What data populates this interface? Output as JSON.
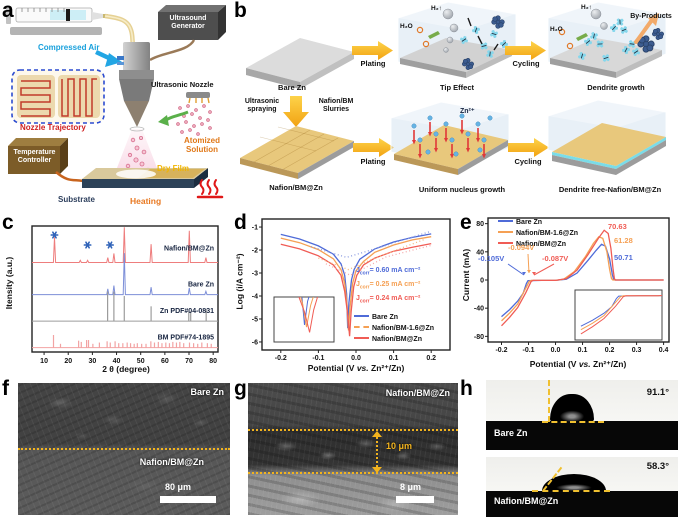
{
  "figure": {
    "background": "#ffffff"
  },
  "panels": {
    "a": {
      "letter": "a",
      "labels": {
        "ultrasound_generator": "Ultrasound Generator",
        "compressed_air": "Compressed Air",
        "ultrasonic_nozzle": "Ultrasonic Nozzle",
        "nozzle_trajectory": "Nozzle Trajectory",
        "atomized_solution": "Atomized Solution",
        "temperature_controller": "Temperature Controller",
        "dry_film": "Dry Film",
        "substrate": "Substrate",
        "heating": "Heating"
      }
    },
    "b": {
      "letter": "b",
      "top": {
        "bare_zn": "Bare Zn",
        "plating": "Plating",
        "tip_effect": "Tip Effect",
        "cycling": "Cycling",
        "dendrite_growth": "Dendrite growth",
        "by_products": "By-Products",
        "h2o_1": "H₂O",
        "h2_1": "H₂↑",
        "h2o_2": "H₂O",
        "h2_2": "H₂↑"
      },
      "bottom": {
        "ultrasonic_spraying": "Ultrasonic spraying",
        "slurries": "Nafion/BM Slurries",
        "nafion_bm_zn": "Nafion/BM@Zn",
        "plating": "Plating",
        "zn_ion": "Zn²⁺",
        "uniform_nucleus": "Uniform nucleus growth",
        "cycling": "Cycling",
        "dendrite_free": "Dendrite free-Nafion/BM@Zn"
      }
    },
    "c": {
      "letter": "c"
    },
    "d": {
      "letter": "d"
    },
    "e": {
      "letter": "e"
    },
    "f": {
      "letter": "f",
      "label_top": "Bare Zn",
      "label_bottom": "Nafion/BM@Zn",
      "scalebar": "80 μm"
    },
    "g": {
      "letter": "g",
      "label": "Nafion/BM@Zn",
      "thickness": "10 μm",
      "scalebar": "8 μm"
    },
    "h": {
      "letter": "h",
      "top": {
        "angle": "91.1°",
        "label": "Bare Zn"
      },
      "bottom": {
        "angle": "58.3°",
        "label": "Nafion/BM@Zn"
      }
    }
  },
  "chart_data": [
    {
      "id": "xrd",
      "type": "line",
      "title": "",
      "xlabel": "2 θ (degree)",
      "ylabel": "Itensity (a.u.)",
      "xlim": [
        5,
        82
      ],
      "xticks": [
        10,
        20,
        30,
        40,
        50,
        60,
        70,
        80
      ],
      "grid": false,
      "marker_color": "#2f62b8",
      "star_markers": [
        14.3,
        28,
        37.3
      ],
      "series": [
        {
          "name": "Nafion/BM@Zn",
          "color": "#ee7d7d",
          "base": 0.29,
          "amp": 0.28,
          "peaks": [
            [
              14.3,
              0.72
            ],
            [
              25,
              0.06
            ],
            [
              28,
              0.06
            ],
            [
              36.4,
              0.14
            ],
            [
              38.9,
              0.26
            ],
            [
              43.2,
              1.0
            ],
            [
              54.3,
              0.52
            ],
            [
              70.1,
              0.9
            ],
            [
              77,
              0.14
            ]
          ]
        },
        {
          "name": "Bare Zn",
          "color": "#7d8fd8",
          "base": 0.545,
          "amp": 0.33,
          "peaks": [
            [
              36.4,
              0.14
            ],
            [
              38.9,
              0.22
            ],
            [
              43.2,
              1.0
            ],
            [
              54.3,
              0.18
            ],
            [
              70.1,
              0.16
            ],
            [
              77,
              0.08
            ]
          ]
        },
        {
          "name": "Zn PDF#04-0831",
          "color": "#9c9c9c",
          "base": 0.755,
          "amp": 0.235,
          "bars": [
            [
              36.3,
              1.0
            ],
            [
              38.9,
              1.0
            ],
            [
              43.2,
              0.85
            ],
            [
              54.3,
              0.5
            ],
            [
              69.9,
              0.33
            ],
            [
              70.7,
              0.33
            ],
            [
              77.1,
              0.4
            ]
          ]
        },
        {
          "name": "BM PDF#74-1895",
          "color": "#f2a3a3",
          "base": 0.965,
          "amp": 0.1,
          "bars": [
            [
              13.9,
              1.0
            ],
            [
              16.8,
              0.3
            ],
            [
              24.3,
              0.55
            ],
            [
              25.4,
              0.45
            ],
            [
              27.6,
              0.6
            ],
            [
              28.4,
              0.6
            ],
            [
              30.2,
              0.3
            ],
            [
              32.9,
              0.4
            ],
            [
              36.1,
              0.5
            ],
            [
              37.4,
              0.4
            ],
            [
              39.4,
              0.5
            ],
            [
              40.9,
              0.35
            ],
            [
              42.6,
              0.35
            ],
            [
              44.4,
              0.4
            ],
            [
              45.8,
              0.35
            ],
            [
              47.3,
              0.3
            ],
            [
              48.6,
              0.35
            ],
            [
              50.4,
              0.3
            ],
            [
              52.2,
              0.3
            ],
            [
              54.2,
              0.5
            ],
            [
              55.7,
              0.4
            ],
            [
              57.3,
              0.45
            ],
            [
              58.8,
              0.35
            ],
            [
              60.4,
              0.4
            ],
            [
              61.9,
              0.35
            ],
            [
              63.3,
              0.45
            ],
            [
              64.8,
              0.4
            ],
            [
              66.2,
              0.45
            ],
            [
              67.8,
              0.35
            ],
            [
              70.2,
              0.4
            ],
            [
              71.9,
              0.35
            ],
            [
              73.6,
              0.3
            ],
            [
              75.3,
              0.4
            ],
            [
              77.6,
              0.35
            ],
            [
              79.2,
              0.3
            ]
          ]
        }
      ]
    },
    {
      "id": "tafel",
      "type": "line",
      "title": "",
      "xlabel_pre": "Potential (V ",
      "xlabel_vs": "vs.",
      "xlabel_post": " Zn²⁺/Zn)",
      "ylabel": "Log (i/A cm⁻²)",
      "xlim": [
        -0.25,
        0.25
      ],
      "ylim": [
        -6.35,
        -0.65
      ],
      "xticks": [
        "-0.2",
        "-0.1",
        "0.0",
        "0.1",
        "0.2"
      ],
      "yticks": [
        -1,
        -2,
        -3,
        -4,
        -5,
        -6
      ],
      "legend_position": "lower right",
      "annotations": [
        {
          "j": "J",
          "sub": "corr",
          "rest": "= 0.60 mA cm⁻²",
          "color": "#4f6bd8"
        },
        {
          "j": "J",
          "sub": "corr",
          "rest": "= 0.25 mA cm⁻²",
          "color": "#f5a054"
        },
        {
          "j": "J",
          "sub": "corr",
          "rest": "= 0.24 mA cm⁻²",
          "color": "#f05c55"
        }
      ],
      "legend": [
        {
          "label": "Bare Zn",
          "color": "#4f6bd8",
          "dash": ""
        },
        {
          "label": "Nafion/BM-1.6@Zn",
          "color": "#f5a054",
          "dash": "3 2"
        },
        {
          "label": "Nafion/BM@Zn",
          "color": "#f05c55",
          "dash": ""
        }
      ],
      "series": [
        {
          "name": "Bare Zn",
          "color": "#4f6bd8",
          "dash": "",
          "points": [
            [
              -0.2,
              -1.32
            ],
            [
              -0.15,
              -1.52
            ],
            [
              -0.1,
              -1.82
            ],
            [
              -0.06,
              -2.18
            ],
            [
              -0.04,
              -2.6
            ],
            [
              -0.03,
              -3.1
            ],
            [
              -0.025,
              -3.9
            ],
            [
              -0.022,
              -5.4
            ],
            [
              -0.019,
              -4.3
            ],
            [
              -0.012,
              -3.3
            ],
            [
              -0.005,
              -2.85
            ],
            [
              0.01,
              -2.4
            ],
            [
              0.05,
              -1.95
            ],
            [
              0.1,
              -1.65
            ],
            [
              0.15,
              -1.45
            ],
            [
              0.2,
              -1.3
            ]
          ]
        },
        {
          "name": "Nafion/BM-1.6@Zn",
          "color": "#f5a054",
          "dash": "",
          "points": [
            [
              -0.2,
              -1.48
            ],
            [
              -0.15,
              -1.68
            ],
            [
              -0.1,
              -1.98
            ],
            [
              -0.06,
              -2.38
            ],
            [
              -0.04,
              -2.85
            ],
            [
              -0.03,
              -3.45
            ],
            [
              -0.024,
              -4.4
            ],
            [
              -0.02,
              -5.5
            ],
            [
              -0.016,
              -4.5
            ],
            [
              -0.009,
              -3.45
            ],
            [
              0,
              -2.9
            ],
            [
              0.02,
              -2.5
            ],
            [
              0.05,
              -2.1
            ],
            [
              0.1,
              -1.78
            ],
            [
              0.15,
              -1.56
            ],
            [
              0.2,
              -1.42
            ]
          ]
        },
        {
          "name": "Nafion/BM@Zn",
          "color": "#f05c55",
          "dash": "",
          "points": [
            [
              -0.2,
              -1.75
            ],
            [
              -0.15,
              -1.95
            ],
            [
              -0.1,
              -2.25
            ],
            [
              -0.06,
              -2.65
            ],
            [
              -0.04,
              -3.1
            ],
            [
              -0.03,
              -3.8
            ],
            [
              -0.022,
              -4.8
            ],
            [
              -0.017,
              -5.75
            ],
            [
              -0.013,
              -4.7
            ],
            [
              -0.006,
              -3.6
            ],
            [
              0.002,
              -3.1
            ],
            [
              0.02,
              -2.65
            ],
            [
              0.05,
              -2.35
            ],
            [
              0.1,
              -2.05
            ],
            [
              0.15,
              -1.88
            ],
            [
              0.2,
              -1.72
            ]
          ]
        },
        {
          "name": "fit Bare Zn",
          "color": "#8a9ae0",
          "dash": "1 2.5",
          "points": [
            [
              -0.12,
              -1.85
            ],
            [
              -0.025,
              -2.32
            ],
            [
              0.06,
              -1.9
            ],
            [
              0.2,
              -1.18
            ]
          ]
        },
        {
          "name": "fit Nafion/BM-1.6@Zn",
          "color": "#f5b87a",
          "dash": "1 2.5",
          "points": [
            [
              -0.1,
              -2.35
            ],
            [
              -0.02,
              -2.85
            ],
            [
              0.05,
              -2.35
            ],
            [
              0.18,
              -1.55
            ]
          ]
        },
        {
          "name": "fit Nafion/BM@Zn",
          "color": "#f5a8a8",
          "dash": "1 2.5",
          "points": [
            [
              -0.08,
              -2.6
            ],
            [
              -0.015,
              -3.1
            ],
            [
              0.08,
              -2.3
            ],
            [
              0.2,
              -1.8
            ]
          ]
        }
      ],
      "inset": {
        "xlim": [
          -0.05,
          0.005
        ],
        "ylim": [
          -6.1,
          -4.2
        ]
      }
    },
    {
      "id": "cv",
      "type": "line",
      "title": "",
      "xlabel_pre": "Potential (V ",
      "xlabel_vs": "vs.",
      "xlabel_post": " Zn²⁺/Zn)",
      "ylabel": "Current (mA)",
      "xlim": [
        -0.25,
        0.42
      ],
      "ylim": [
        -88,
        88
      ],
      "xticks": [
        "-0.2",
        "-0.1",
        "0.0",
        "0.1",
        "0.2",
        "0.3",
        "0.4"
      ],
      "yticks": [
        -80,
        -40,
        0,
        40,
        80
      ],
      "legend_position": "upper left",
      "annotations": [
        {
          "text": "-0.105V",
          "color": "#4f6bd8"
        },
        {
          "text": "-0.094V",
          "color": "#f5a054"
        },
        {
          "text": "-0.087V",
          "color": "#f05c55"
        },
        {
          "text": "70.63",
          "color": "#f05c55"
        },
        {
          "text": "61.28",
          "color": "#f5a054"
        },
        {
          "text": "50.71",
          "color": "#4f6bd8"
        }
      ],
      "legend": [
        {
          "label": "Bare Zn",
          "color": "#4f6bd8",
          "dash": ""
        },
        {
          "label": "Nafion/BM-1.6@Zn",
          "color": "#f5a054",
          "dash": ""
        },
        {
          "label": "Nafion/BM@Zn",
          "color": "#f05c55",
          "dash": ""
        }
      ],
      "series": [
        {
          "name": "Bare Zn",
          "color": "#4f6bd8",
          "dash": "",
          "points": [
            [
              -0.2,
              -52
            ],
            [
              -0.17,
              -42
            ],
            [
              -0.14,
              -30
            ],
            [
              -0.12,
              -19
            ],
            [
              -0.108,
              -5
            ],
            [
              -0.102,
              -1
            ],
            [
              -0.05,
              -0.5
            ],
            [
              0,
              -0.5
            ],
            [
              0.04,
              1
            ],
            [
              0.08,
              10
            ],
            [
              0.12,
              28
            ],
            [
              0.15,
              42
            ],
            [
              0.17,
              50.7
            ],
            [
              0.185,
              48
            ],
            [
              0.2,
              30
            ],
            [
              0.21,
              8
            ],
            [
              0.215,
              1
            ],
            [
              0.22,
              0
            ],
            [
              0.4,
              0
            ]
          ]
        },
        {
          "name": "Nafion/BM-1.6@Zn",
          "color": "#f5a054",
          "dash": "",
          "points": [
            [
              -0.2,
              -58
            ],
            [
              -0.17,
              -47
            ],
            [
              -0.14,
              -34
            ],
            [
              -0.115,
              -15
            ],
            [
              -0.097,
              -2
            ],
            [
              -0.09,
              -0.5
            ],
            [
              0,
              -0.5
            ],
            [
              0.03,
              1
            ],
            [
              0.07,
              12
            ],
            [
              0.11,
              33
            ],
            [
              0.14,
              52
            ],
            [
              0.16,
              61.3
            ],
            [
              0.175,
              59
            ],
            [
              0.19,
              40
            ],
            [
              0.2,
              15
            ],
            [
              0.207,
              2
            ],
            [
              0.212,
              0
            ],
            [
              0.4,
              0
            ]
          ]
        },
        {
          "name": "Nafion/BM@Zn",
          "color": "#f05c55",
          "dash": "",
          "points": [
            [
              -0.2,
              -65
            ],
            [
              -0.17,
              -53
            ],
            [
              -0.14,
              -39
            ],
            [
              -0.11,
              -18
            ],
            [
              -0.09,
              -2
            ],
            [
              -0.083,
              -0.5
            ],
            [
              0,
              -0.5
            ],
            [
              0.04,
              2
            ],
            [
              0.08,
              14
            ],
            [
              0.12,
              36
            ],
            [
              0.16,
              60
            ],
            [
              0.18,
              70.6
            ],
            [
              0.195,
              66
            ],
            [
              0.205,
              45
            ],
            [
              0.213,
              15
            ],
            [
              0.218,
              2
            ],
            [
              0.222,
              0
            ],
            [
              0.4,
              0
            ]
          ]
        }
      ],
      "inset": {
        "xlim": [
          -0.21,
          0.005
        ],
        "ylim": [
          -72,
          6
        ]
      }
    }
  ]
}
